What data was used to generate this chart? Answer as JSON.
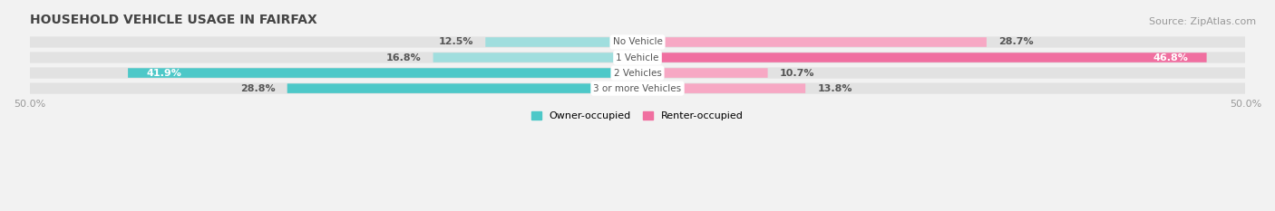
{
  "title": "HOUSEHOLD VEHICLE USAGE IN FAIRFAX",
  "source": "Source: ZipAtlas.com",
  "categories": [
    "No Vehicle",
    "1 Vehicle",
    "2 Vehicles",
    "3 or more Vehicles"
  ],
  "owner_values": [
    12.5,
    16.8,
    41.9,
    28.8
  ],
  "renter_values": [
    28.7,
    46.8,
    10.7,
    13.8
  ],
  "owner_color": "#4dc8c8",
  "renter_color": "#f06fa0",
  "owner_color_light": "#a0dede",
  "renter_color_light": "#f7a8c4",
  "owner_label": "Owner-occupied",
  "renter_label": "Renter-occupied",
  "xlim": [
    -50,
    50
  ],
  "bg_color": "#f2f2f2",
  "bar_bg_color": "#e2e2e2",
  "bar_height": 0.6,
  "bar_gap": 0.18,
  "title_fontsize": 10,
  "source_fontsize": 8,
  "value_fontsize": 8,
  "cat_fontsize": 7.5,
  "tick_fontsize": 8
}
